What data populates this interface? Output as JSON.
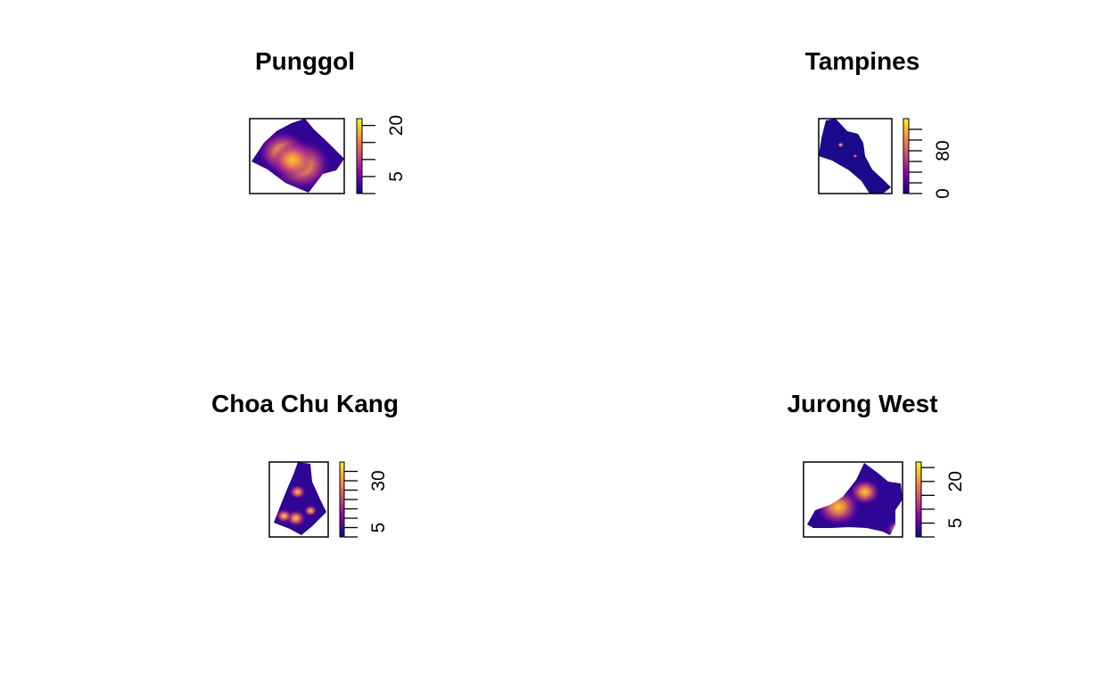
{
  "palette": [
    "#0d0887",
    "#3b049a",
    "#6a00a8",
    "#900da4",
    "#b12a90",
    "#cc4778",
    "#e16462",
    "#f2844b",
    "#fca636",
    "#fcce25",
    "#f0f921"
  ],
  "chart_data": [
    {
      "type": "heatmap",
      "title": "Punggol",
      "colorbar": {
        "range": [
          0,
          22
        ],
        "tick_labels": [
          "5",
          "20"
        ],
        "tick_values": [
          5,
          20
        ],
        "minor_ticks": [
          0,
          5,
          10,
          15,
          20
        ]
      },
      "hotspots": [
        [
          0.35,
          0.45,
          0.12
        ],
        [
          0.55,
          0.62,
          0.14
        ],
        [
          0.45,
          0.55,
          0.1
        ]
      ]
    },
    {
      "type": "heatmap",
      "title": "Tampines",
      "colorbar": {
        "range": [
          0,
          140
        ],
        "tick_labels": [
          "0",
          "80"
        ],
        "tick_values": [
          0,
          80
        ],
        "minor_ticks": [
          0,
          20,
          40,
          60,
          80,
          100,
          120
        ]
      },
      "hotspots": [
        [
          0.3,
          0.35,
          0.02
        ],
        [
          0.5,
          0.5,
          0.01
        ]
      ]
    },
    {
      "type": "heatmap",
      "title": "Choa Chu Kang",
      "colorbar": {
        "range": [
          0,
          40
        ],
        "tick_labels": [
          "5",
          "30"
        ],
        "tick_values": [
          5,
          30
        ],
        "minor_ticks": [
          0,
          5,
          10,
          15,
          20,
          25,
          30,
          35
        ]
      },
      "hotspots": [
        [
          0.45,
          0.75,
          0.06
        ],
        [
          0.25,
          0.72,
          0.05
        ],
        [
          0.48,
          0.4,
          0.05
        ],
        [
          0.7,
          0.65,
          0.04
        ]
      ]
    },
    {
      "type": "heatmap",
      "title": "Jurong West",
      "colorbar": {
        "range": [
          0,
          27
        ],
        "tick_labels": [
          "5",
          "20"
        ],
        "tick_values": [
          5,
          20
        ],
        "minor_ticks": [
          0,
          5,
          10,
          15,
          20,
          25
        ]
      },
      "hotspots": [
        [
          0.35,
          0.6,
          0.1
        ],
        [
          0.62,
          0.4,
          0.07
        ],
        [
          0.95,
          0.9,
          0.05
        ]
      ]
    }
  ]
}
